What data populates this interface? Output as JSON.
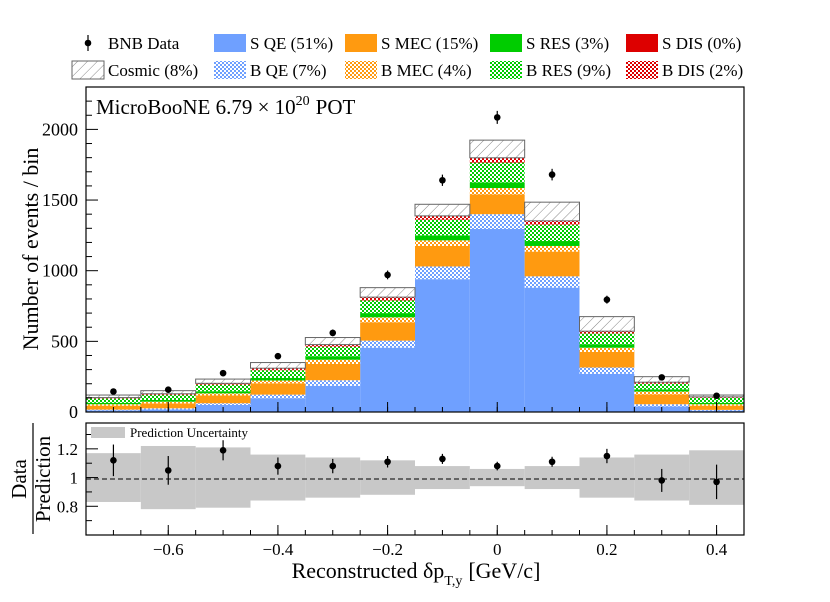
{
  "chart_data": {
    "type": "stacked-histogram",
    "xlabel_main": "Reconstructed δp",
    "xlabel_sub": "T,y",
    "xlabel_unit": "[GeV/c]",
    "ylabel": "Number of events / bin",
    "ratio_ylabel_top": "Data",
    "ratio_ylabel_bottom": "Prediction",
    "annotation_main": "MicroBooNE 6.79 × 10",
    "annotation_exp": "20",
    "annotation_tail": "POT",
    "xlim": [
      -0.75,
      0.45
    ],
    "ylim": [
      0,
      2300
    ],
    "ratio_ylim": [
      0.6,
      1.38
    ],
    "x_ticks": [
      -0.6,
      -0.4,
      -0.2,
      0,
      0.2,
      0.4
    ],
    "x_tick_labels": [
      "−0.6",
      "−0.4",
      "−0.2",
      "0",
      "0.2",
      "0.4"
    ],
    "y_ticks": [
      0,
      500,
      1000,
      1500,
      2000
    ],
    "ratio_y_ticks": [
      0.8,
      1,
      1.2
    ],
    "ratio_y_tick_labels": [
      "0.8",
      "1",
      "1.2"
    ],
    "bin_edges": [
      -0.75,
      -0.65,
      -0.55,
      -0.45,
      -0.35,
      -0.25,
      -0.15,
      -0.05,
      0.05,
      0.15,
      0.25,
      0.35,
      0.45
    ],
    "series": [
      {
        "name": "S QE (51%)",
        "key": "sqe",
        "color": "#6fa0ff",
        "pattern": "solid",
        "values": [
          12,
          18,
          50,
          98,
          185,
          455,
          940,
          1295,
          880,
          270,
          40,
          10
        ]
      },
      {
        "name": "B QE (7%)",
        "key": "bqe",
        "color": "#6fa0ff",
        "pattern": "dots",
        "values": [
          5,
          8,
          12,
          25,
          40,
          50,
          90,
          105,
          80,
          45,
          15,
          5
        ]
      },
      {
        "name": "S MEC (15%)",
        "key": "smec",
        "color": "#ff9a10",
        "pattern": "solid",
        "values": [
          28,
          35,
          55,
          80,
          115,
          130,
          145,
          140,
          175,
          110,
          70,
          30
        ]
      },
      {
        "name": "B MEC (4%)",
        "key": "bmec",
        "color": "#ff9a10",
        "pattern": "dots",
        "values": [
          10,
          12,
          15,
          20,
          30,
          35,
          40,
          45,
          40,
          30,
          20,
          10
        ]
      },
      {
        "name": "S RES (3%)",
        "key": "sres",
        "color": "#00cc00",
        "pattern": "solid",
        "values": [
          10,
          12,
          15,
          18,
          25,
          30,
          35,
          40,
          35,
          25,
          15,
          10
        ]
      },
      {
        "name": "B RES (9%)",
        "key": "bres",
        "color": "#00cc00",
        "pattern": "dots",
        "values": [
          30,
          35,
          45,
          55,
          65,
          90,
          110,
          140,
          115,
          75,
          40,
          35
        ]
      },
      {
        "name": "S DIS (0%)",
        "key": "sdis",
        "color": "#dd0000",
        "pattern": "solid",
        "values": [
          1,
          1,
          1,
          2,
          2,
          3,
          3,
          4,
          3,
          2,
          1,
          1
        ]
      },
      {
        "name": "B DIS (2%)",
        "key": "bdis",
        "color": "#dd0000",
        "pattern": "dots",
        "values": [
          6,
          8,
          10,
          12,
          15,
          20,
          25,
          30,
          25,
          15,
          10,
          6
        ]
      },
      {
        "name": "Cosmic (8%)",
        "key": "cosmic",
        "color": "#ffffff",
        "pattern": "hatch",
        "values": [
          18,
          22,
          30,
          40,
          50,
          67,
          82,
          125,
          132,
          103,
          39,
          13
        ]
      }
    ],
    "data": {
      "name": "BNB Data",
      "x": [
        -0.7,
        -0.6,
        -0.5,
        -0.4,
        -0.3,
        -0.2,
        -0.1,
        0,
        0.1,
        0.2,
        0.3,
        0.4
      ],
      "values": [
        145,
        158,
        275,
        395,
        560,
        970,
        1640,
        2085,
        1680,
        795,
        245,
        115
      ],
      "errors": [
        12,
        13,
        17,
        20,
        24,
        31,
        40,
        46,
        41,
        28,
        16,
        11
      ]
    },
    "ratio": {
      "values": [
        1.12,
        1.05,
        1.19,
        1.08,
        1.08,
        1.11,
        1.13,
        1.08,
        1.11,
        1.15,
        0.98,
        0.97
      ],
      "errors": [
        0.11,
        0.1,
        0.07,
        0.06,
        0.05,
        0.04,
        0.035,
        0.03,
        0.035,
        0.05,
        0.08,
        0.12
      ],
      "uncertainty": [
        0.17,
        0.22,
        0.21,
        0.16,
        0.14,
        0.12,
        0.08,
        0.06,
        0.08,
        0.14,
        0.16,
        0.19
      ],
      "uncertainty_label": "Prediction Uncertainty"
    },
    "legend_rows": [
      [
        "data",
        "sqe",
        "smec",
        "sres",
        "sdis"
      ],
      [
        "cosmic",
        "bqe",
        "bmec",
        "bres",
        "bdis"
      ]
    ]
  }
}
